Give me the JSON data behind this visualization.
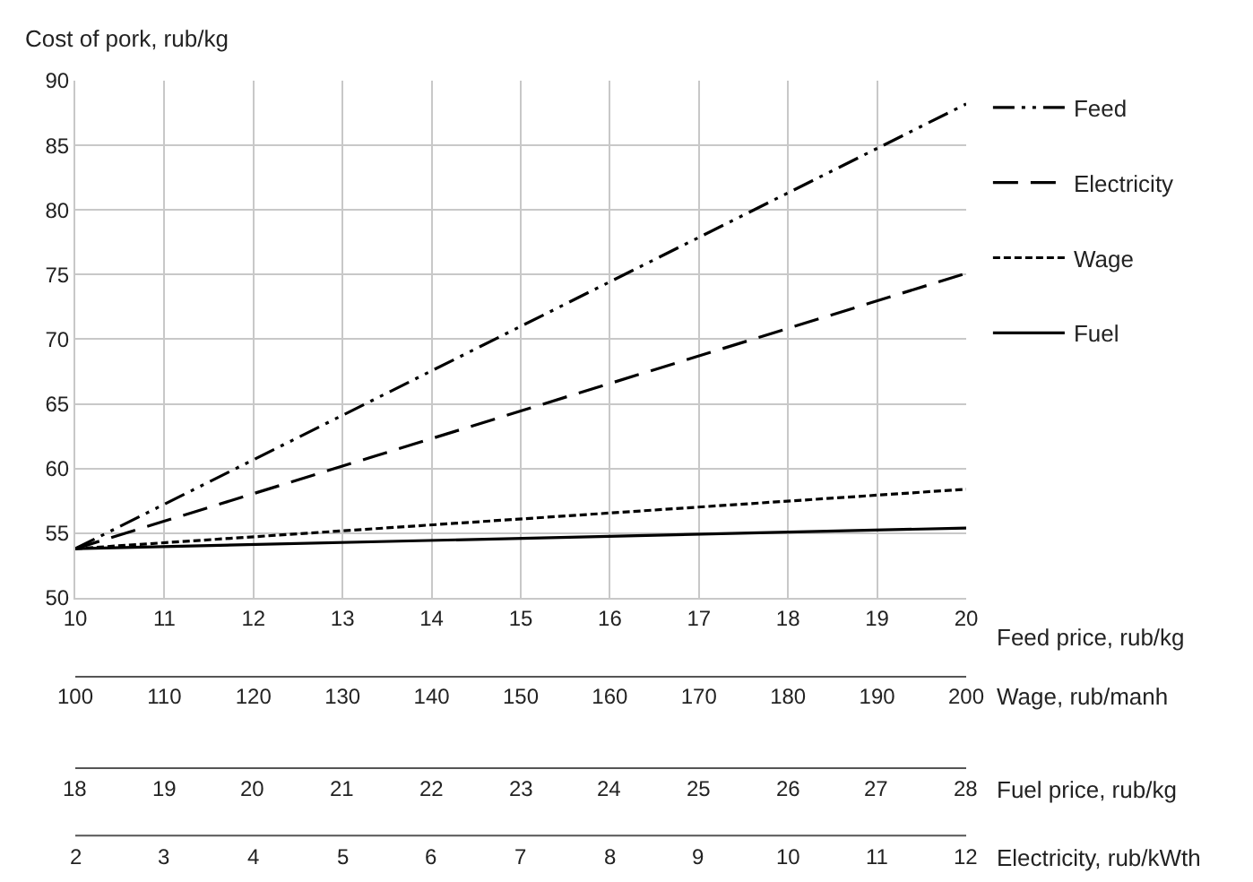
{
  "chart_data": {
    "type": "line",
    "ylabel": "Cost of pork, rub/kg",
    "xlabel": "Feed price, rub/kg",
    "x": [
      10,
      20
    ],
    "series": [
      {
        "name": "Feed",
        "color": "#000000",
        "line_style": "dashdot",
        "values": [
          53.8,
          88.2
        ]
      },
      {
        "name": "Electricity",
        "color": "#000000",
        "line_style": "dashed",
        "values": [
          53.8,
          75.1
        ]
      },
      {
        "name": "Wage",
        "color": "#000000",
        "line_style": "dotted",
        "values": [
          53.8,
          58.4
        ]
      },
      {
        "name": "Fuel",
        "color": "#000000",
        "line_style": "solid",
        "values": [
          53.8,
          55.4
        ]
      }
    ],
    "xlim": [
      10,
      20
    ],
    "xticks": [
      10,
      11,
      12,
      13,
      14,
      15,
      16,
      17,
      18,
      19,
      20
    ],
    "ylim": [
      50,
      90
    ],
    "yticks": [
      50,
      55,
      60,
      65,
      70,
      75,
      80,
      85,
      90
    ],
    "x2label": "Wage, rub/manh",
    "x2lim": [
      100,
      200
    ],
    "x2ticks": [
      100,
      110,
      120,
      130,
      140,
      150,
      160,
      170,
      180,
      190,
      200
    ],
    "annotations": [
      "18",
      "19",
      "20",
      "21",
      "22",
      "23",
      "24",
      "25",
      "26",
      "27",
      "28",
      "Fuel price, rub/kg",
      "2",
      "3",
      "4",
      "5",
      "6",
      "7",
      "8",
      "9",
      "10",
      "11",
      "12",
      "Electricity, rub/kWth"
    ],
    "grid": true,
    "legend": "top right",
    "marker": "none"
  }
}
